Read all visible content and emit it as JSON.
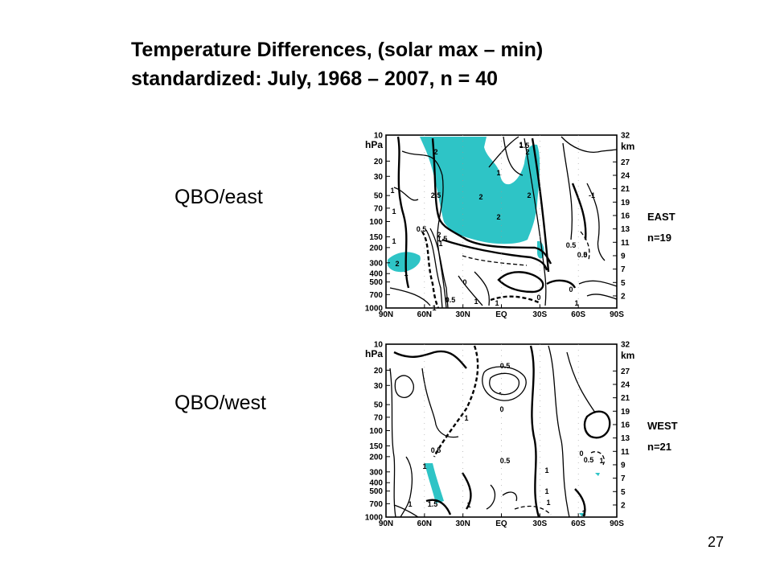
{
  "slide": {
    "title_line1": "Temperature Differences, (solar max – min)",
    "title_line2": "standardized: July, 1968 – 2007, n = 40",
    "page_number": "27"
  },
  "panels": [
    {
      "side_label": "QBO/east",
      "regime": "EAST",
      "n": "n=19"
    },
    {
      "side_label": "QBO/west",
      "regime": "WEST",
      "n": "n=21"
    }
  ],
  "chart_data": [
    {
      "type": "heatmap",
      "subtype": "latitude-pressure contour plot",
      "regime": "EAST",
      "n": "n=19",
      "x_ticks": [
        "90N",
        "60N",
        "30N",
        "EQ",
        "30S",
        "60S",
        "90S"
      ],
      "y_left_unit": "hPa",
      "y_left_ticks": [
        "10",
        "20",
        "30",
        "50",
        "70",
        "100",
        "150",
        "200",
        "300",
        "400",
        "500",
        "700",
        "1000"
      ],
      "y_right_unit": "km",
      "y_right_ticks": [
        "32",
        "27",
        "24",
        "21",
        "19",
        "16",
        "13",
        "11",
        "9",
        "7",
        "5",
        "2"
      ],
      "y_scale": "log",
      "contour_labels": [
        "2",
        "1.5",
        "2",
        "1",
        "1",
        "2.5",
        "2",
        "2",
        "2",
        "-1",
        "1",
        "1",
        "1",
        "0.5",
        "2",
        "1.5",
        "1",
        "0.5",
        "0.5",
        "0",
        "2",
        "1",
        "0",
        "0",
        "0.5",
        "1",
        "1",
        "0",
        "1",
        "1"
      ],
      "shading": "teal fill marks values >= 2"
    },
    {
      "type": "heatmap",
      "subtype": "latitude-pressure contour plot",
      "regime": "WEST",
      "n": "n=21",
      "x_ticks": [
        "90N",
        "60N",
        "30N",
        "EQ",
        "30S",
        "60S",
        "90S"
      ],
      "y_left_unit": "hPa",
      "y_left_ticks": [
        "10",
        "20",
        "30",
        "50",
        "70",
        "100",
        "150",
        "200",
        "300",
        "400",
        "500",
        "700",
        "1000"
      ],
      "y_right_unit": "km",
      "y_right_ticks": [
        "32",
        "27",
        "24",
        "21",
        "19",
        "16",
        "13",
        "11",
        "9",
        "7",
        "5",
        "2"
      ],
      "y_scale": "log",
      "contour_labels": [
        "0.5",
        "-",
        "0",
        "1",
        "0.5",
        "1",
        "0.5",
        "1",
        "0",
        "0.5",
        "1",
        "1.5",
        "1",
        "1",
        "1",
        "1",
        "1"
      ],
      "shading": "teal fill marks values >= 1.5"
    }
  ],
  "colors": {
    "shading": "#2ec4c6",
    "ink": "#000000",
    "background": "#ffffff"
  }
}
